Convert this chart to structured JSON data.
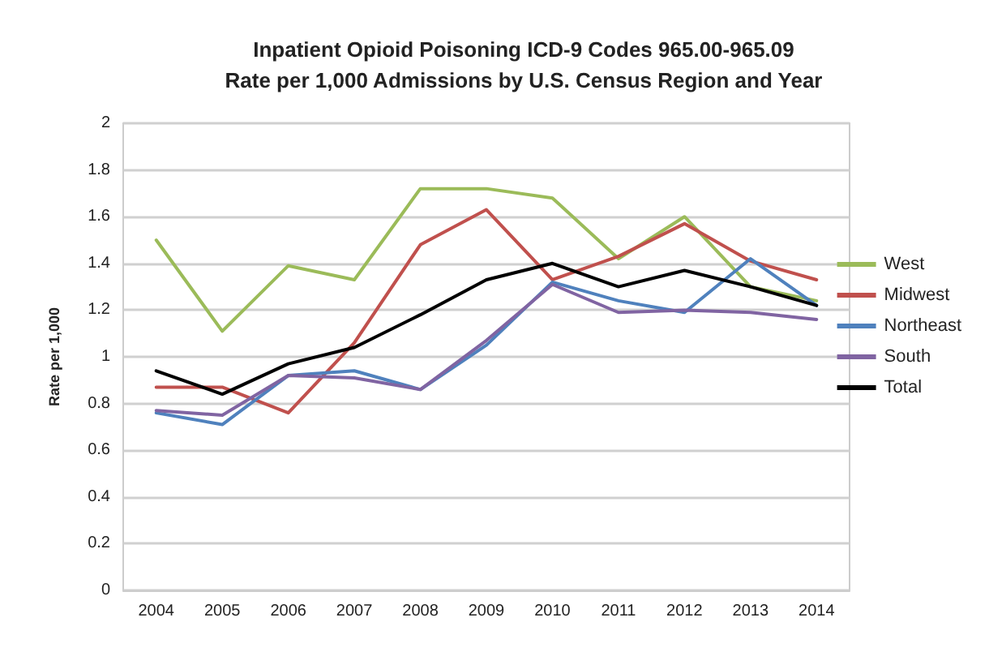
{
  "chart_data": {
    "type": "line",
    "title": "Inpatient Opioid Poisoning ICD-9 Codes 965.00-965.09\nRate per 1,000 Admissions by U.S. Census Region and Year",
    "ylabel": "Rate per 1,000",
    "categories": [
      "2004",
      "2005",
      "2006",
      "2007",
      "2008",
      "2009",
      "2010",
      "2011",
      "2012",
      "2013",
      "2014"
    ],
    "series": [
      {
        "name": "West",
        "color": "#9bbb59",
        "values": [
          1.5,
          1.11,
          1.39,
          1.33,
          1.72,
          1.72,
          1.68,
          1.42,
          1.6,
          1.3,
          1.24
        ]
      },
      {
        "name": "Midwest",
        "color": "#c0504d",
        "values": [
          0.87,
          0.87,
          0.76,
          1.06,
          1.48,
          1.63,
          1.33,
          1.43,
          1.57,
          1.41,
          1.33
        ]
      },
      {
        "name": "Northeast",
        "color": "#4f81bd",
        "values": [
          0.76,
          0.71,
          0.92,
          0.94,
          0.86,
          1.05,
          1.32,
          1.24,
          1.19,
          1.42,
          1.22
        ]
      },
      {
        "name": "South",
        "color": "#8064a2",
        "values": [
          0.77,
          0.75,
          0.92,
          0.91,
          0.86,
          1.07,
          1.31,
          1.19,
          1.2,
          1.19,
          1.16
        ]
      },
      {
        "name": "Total",
        "color": "#000000",
        "values": [
          0.94,
          0.84,
          0.97,
          1.04,
          1.18,
          1.33,
          1.4,
          1.3,
          1.37,
          1.3,
          1.22
        ]
      }
    ],
    "ylim": [
      0,
      2
    ],
    "yticks": [
      0,
      0.2,
      0.4,
      0.6,
      0.8,
      1,
      1.2,
      1.4,
      1.6,
      1.8,
      2
    ],
    "grid": "y",
    "legend": "right",
    "marker": "none",
    "line_style": "solid"
  }
}
